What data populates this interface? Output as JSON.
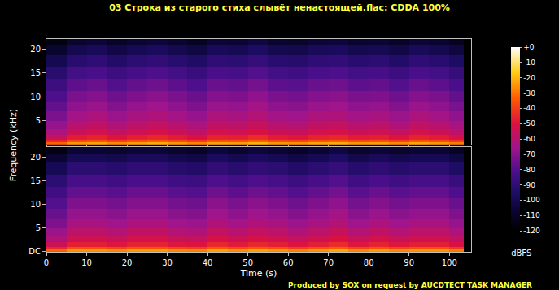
{
  "chart_data": {
    "type": "heatmap",
    "title": "03 Строка из старого стиха слывёт ненастоящей.flac: CDDA 100%",
    "x_label": "Time (s)",
    "y_label": "Frequency (kHz)",
    "caption": "Produced by SOX on request by AUCDTECT TASK MANAGER",
    "xlim": [
      0,
      105.4
    ],
    "xticks": [
      0,
      10,
      20,
      30,
      40,
      50,
      60,
      70,
      80,
      90,
      100
    ],
    "ylim": [
      0,
      22.05
    ],
    "x": [
      2.5,
      7.5,
      12.5,
      17.5,
      22.5,
      27.5,
      32.5,
      37.5,
      42.5,
      47.5,
      52.5,
      57.5,
      62.5,
      67.5,
      72.5,
      77.5,
      82.5,
      87.5,
      92.5,
      97.5,
      102.5,
      104.5
    ],
    "y": [
      0.25,
      0.75,
      1.5,
      2.5,
      4,
      6,
      8,
      10,
      12.5,
      15,
      17.5,
      20,
      21.5
    ],
    "colorbar": {
      "range": [
        -120,
        0
      ],
      "ticks": [
        {
          "value": 0,
          "label": "+0"
        },
        -10,
        -20,
        -30,
        -40,
        -50,
        -60,
        -70,
        -80,
        -90,
        -100,
        -110,
        -120
      ],
      "label": "dBFS"
    },
    "panels": [
      {
        "yticks": [
          5,
          10,
          15,
          20
        ],
        "z": [
          [
            -33,
            -25,
            -23,
            -27,
            -24,
            -22,
            -25,
            -28,
            -23,
            -24,
            -21,
            -25,
            -26,
            -23,
            -22,
            -25,
            -24,
            -27,
            -23,
            -25,
            -29,
            -120
          ],
          [
            -46,
            -38,
            -36,
            -40,
            -37,
            -35,
            -38,
            -41,
            -36,
            -37,
            -34,
            -38,
            -39,
            -36,
            -35,
            -38,
            -37,
            -40,
            -36,
            -38,
            -42,
            -120
          ],
          [
            -56,
            -48,
            -46,
            -50,
            -47,
            -45,
            -48,
            -51,
            -46,
            -47,
            -44,
            -48,
            -49,
            -46,
            -45,
            -48,
            -47,
            -50,
            -46,
            -48,
            -52,
            -120
          ],
          [
            -63,
            -55,
            -53,
            -57,
            -54,
            -52,
            -55,
            -58,
            -53,
            -54,
            -51,
            -55,
            -56,
            -53,
            -52,
            -55,
            -54,
            -57,
            -53,
            -55,
            -59,
            -120
          ],
          [
            -68,
            -60,
            -58,
            -62,
            -59,
            -57,
            -60,
            -63,
            -58,
            -59,
            -56,
            -60,
            -61,
            -58,
            -57,
            -60,
            -59,
            -62,
            -58,
            -60,
            -64,
            -120
          ],
          [
            -73,
            -65,
            -63,
            -67,
            -64,
            -62,
            -65,
            -68,
            -63,
            -64,
            -61,
            -65,
            -66,
            -63,
            -62,
            -65,
            -64,
            -67,
            -63,
            -65,
            -69,
            -120
          ],
          [
            -77,
            -69,
            -67,
            -71,
            -68,
            -66,
            -69,
            -72,
            -67,
            -68,
            -65,
            -69,
            -70,
            -67,
            -66,
            -69,
            -68,
            -71,
            -67,
            -69,
            -73,
            -120
          ],
          [
            -81,
            -73,
            -71,
            -75,
            -72,
            -70,
            -73,
            -76,
            -71,
            -72,
            -69,
            -73,
            -74,
            -71,
            -70,
            -73,
            -72,
            -75,
            -71,
            -73,
            -77,
            -120
          ],
          [
            -86,
            -78,
            -76,
            -80,
            -77,
            -75,
            -78,
            -81,
            -76,
            -77,
            -74,
            -78,
            -79,
            -76,
            -75,
            -78,
            -77,
            -80,
            -76,
            -78,
            -82,
            -120
          ],
          [
            -92,
            -84,
            -82,
            -86,
            -83,
            -81,
            -84,
            -87,
            -82,
            -83,
            -80,
            -84,
            -85,
            -82,
            -81,
            -84,
            -83,
            -86,
            -82,
            -84,
            -88,
            -120
          ],
          [
            -100,
            -92,
            -90,
            -94,
            -91,
            -89,
            -92,
            -95,
            -90,
            -91,
            -88,
            -92,
            -93,
            -90,
            -89,
            -92,
            -91,
            -94,
            -90,
            -92,
            -96,
            -120
          ],
          [
            -108,
            -100,
            -98,
            -102,
            -99,
            -97,
            -100,
            -103,
            -98,
            -99,
            -96,
            -100,
            -101,
            -98,
            -97,
            -100,
            -99,
            -102,
            -98,
            -100,
            -104,
            -120
          ],
          [
            -116,
            -108,
            -106,
            -110,
            -107,
            -105,
            -108,
            -111,
            -106,
            -107,
            -104,
            -108,
            -109,
            -106,
            -105,
            -108,
            -107,
            -110,
            -106,
            -108,
            -112,
            -120
          ]
        ]
      },
      {
        "yticks": [
          {
            "value": 0,
            "label": "DC"
          },
          5,
          10,
          15,
          20
        ],
        "z": [
          [
            -32,
            -24,
            -24,
            -26,
            -23,
            -23,
            -26,
            -27,
            -22,
            -25,
            -22,
            -24,
            -27,
            -24,
            -21,
            -26,
            -23,
            -26,
            -24,
            -24,
            -28,
            -120
          ],
          [
            -45,
            -37,
            -37,
            -39,
            -36,
            -36,
            -39,
            -40,
            -35,
            -38,
            -35,
            -37,
            -40,
            -37,
            -34,
            -39,
            -36,
            -39,
            -37,
            -37,
            -41,
            -120
          ],
          [
            -55,
            -47,
            -47,
            -49,
            -46,
            -46,
            -49,
            -50,
            -45,
            -48,
            -45,
            -47,
            -50,
            -47,
            -44,
            -49,
            -46,
            -49,
            -47,
            -47,
            -51,
            -120
          ],
          [
            -62,
            -54,
            -54,
            -56,
            -53,
            -53,
            -56,
            -57,
            -52,
            -55,
            -52,
            -54,
            -57,
            -54,
            -51,
            -56,
            -53,
            -56,
            -54,
            -54,
            -58,
            -120
          ],
          [
            -67,
            -59,
            -59,
            -61,
            -58,
            -58,
            -61,
            -62,
            -57,
            -60,
            -57,
            -59,
            -62,
            -59,
            -56,
            -61,
            -58,
            -61,
            -59,
            -59,
            -63,
            -120
          ],
          [
            -72,
            -64,
            -64,
            -66,
            -63,
            -63,
            -66,
            -67,
            -62,
            -65,
            -62,
            -64,
            -67,
            -64,
            -61,
            -66,
            -63,
            -66,
            -64,
            -64,
            -68,
            -120
          ],
          [
            -76,
            -68,
            -68,
            -70,
            -67,
            -67,
            -70,
            -71,
            -66,
            -69,
            -66,
            -68,
            -71,
            -68,
            -65,
            -70,
            -67,
            -70,
            -68,
            -68,
            -72,
            -120
          ],
          [
            -80,
            -72,
            -72,
            -74,
            -71,
            -71,
            -74,
            -75,
            -70,
            -73,
            -70,
            -72,
            -75,
            -72,
            -69,
            -74,
            -71,
            -74,
            -72,
            -72,
            -76,
            -120
          ],
          [
            -85,
            -77,
            -77,
            -79,
            -76,
            -76,
            -79,
            -80,
            -75,
            -78,
            -75,
            -77,
            -80,
            -77,
            -74,
            -79,
            -76,
            -79,
            -77,
            -77,
            -81,
            -120
          ],
          [
            -91,
            -83,
            -83,
            -85,
            -82,
            -82,
            -85,
            -86,
            -81,
            -84,
            -81,
            -83,
            -86,
            -83,
            -80,
            -85,
            -82,
            -85,
            -83,
            -83,
            -87,
            -120
          ],
          [
            -99,
            -91,
            -91,
            -93,
            -90,
            -90,
            -93,
            -94,
            -89,
            -92,
            -89,
            -91,
            -94,
            -91,
            -88,
            -93,
            -90,
            -93,
            -91,
            -91,
            -95,
            -120
          ],
          [
            -107,
            -99,
            -99,
            -101,
            -98,
            -98,
            -101,
            -102,
            -97,
            -100,
            -97,
            -99,
            -102,
            -99,
            -96,
            -101,
            -98,
            -101,
            -99,
            -99,
            -103,
            -120
          ],
          [
            -115,
            -107,
            -107,
            -109,
            -106,
            -106,
            -109,
            -110,
            -105,
            -108,
            -105,
            -107,
            -110,
            -107,
            -104,
            -109,
            -106,
            -109,
            -107,
            -107,
            -111,
            -120
          ]
        ]
      }
    ]
  }
}
